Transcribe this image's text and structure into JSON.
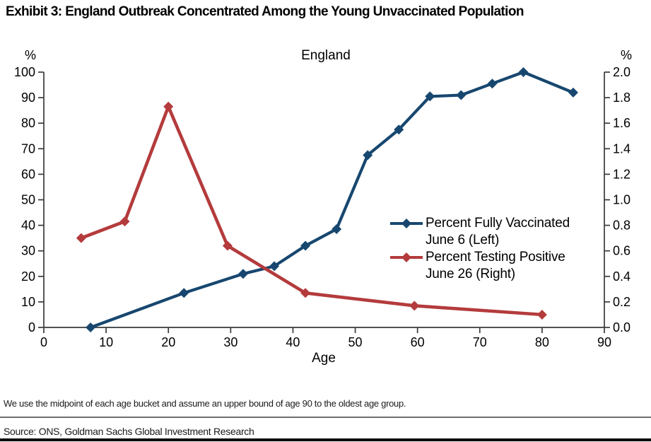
{
  "exhibit_title": "Exhibit 3: England Outbreak Concentrated Among the Young Unvaccinated Population",
  "footnote": "We use the midpoint of each age bucket and assume an upper bound of age 90 to the oldest age group.",
  "source": "Source: ONS, Goldman Sachs Global Investment Research",
  "colors": {
    "vaccinated_line": "#17476F",
    "positive_line": "#B43B3C",
    "axis": "#3a3a3a",
    "text": "#000000"
  },
  "chart_data": {
    "type": "line",
    "title": "England",
    "xlabel": "Age",
    "grid": false,
    "legend_position": "center-right",
    "x_axis": {
      "min": 0,
      "max": 90,
      "ticks": [
        "0",
        "10",
        "20",
        "30",
        "40",
        "50",
        "60",
        "70",
        "80",
        "90"
      ]
    },
    "left_axis": {
      "label": "%",
      "min": 0,
      "max": 100,
      "ticks": [
        "0",
        "10",
        "20",
        "30",
        "40",
        "50",
        "60",
        "70",
        "80",
        "90",
        "100"
      ]
    },
    "right_axis": {
      "label": "%",
      "min": 0,
      "max": 2.0,
      "ticks": [
        "0.0",
        "0.2",
        "0.4",
        "0.6",
        "0.8",
        "1.0",
        "1.2",
        "1.4",
        "1.6",
        "1.8",
        "2.0"
      ]
    },
    "series": [
      {
        "name": "Percent Fully Vaccinated June 6 (Left)",
        "legend_lines": {
          "line1": "Percent Fully Vaccinated",
          "line2": "June 6 (Left)"
        },
        "axis": "left",
        "color": "#17476F",
        "marker": "diamond",
        "x": [
          7.5,
          22.5,
          32,
          37,
          42,
          47,
          52,
          57,
          62,
          67,
          72,
          77,
          85
        ],
        "y": [
          0,
          13.5,
          21,
          24,
          32,
          38.5,
          67.5,
          77.5,
          90.5,
          91,
          95.5,
          100,
          92
        ]
      },
      {
        "name": "Percent Testing Positive June 26 (Right)",
        "legend_lines": {
          "line1": "Percent Testing Positive",
          "line2": "June 26 (Right)"
        },
        "axis": "right",
        "color": "#B43B3C",
        "marker": "diamond",
        "x": [
          6,
          13,
          20,
          29.5,
          42,
          59.5,
          80
        ],
        "y": [
          0.7,
          0.83,
          1.73,
          0.64,
          0.27,
          0.17,
          0.1
        ]
      }
    ]
  }
}
